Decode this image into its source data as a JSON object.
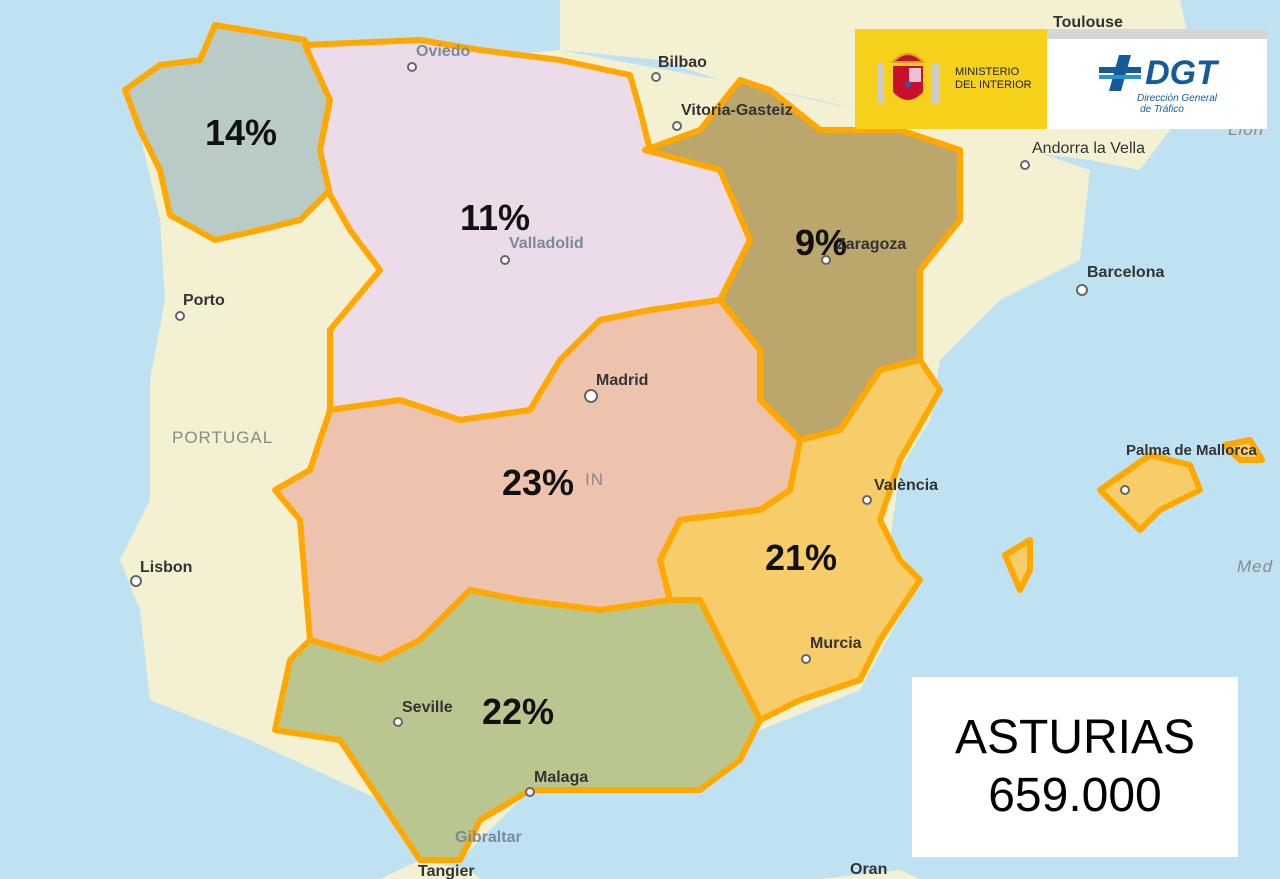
{
  "map": {
    "colors": {
      "sea": "#bfe2f3",
      "land": "#f4f0d2",
      "border": "#ffa800"
    },
    "regions": [
      {
        "id": "northwest",
        "percent": "14%",
        "color": "#b8cbc6"
      },
      {
        "id": "north",
        "percent": "11%",
        "color": "#ecdbe8"
      },
      {
        "id": "northeast",
        "percent": "9%",
        "color": "#bba66b"
      },
      {
        "id": "center",
        "percent": "23%",
        "color": "#eec3ad"
      },
      {
        "id": "east",
        "percent": "21%",
        "color": "#f7cd6a"
      },
      {
        "id": "south",
        "percent": "22%",
        "color": "#bac68f"
      }
    ],
    "cities": {
      "toulouse": "Toulouse",
      "oviedo": "Oviedo",
      "bilbao": "Bilbao",
      "vitoria": "Vitoria-Gasteiz",
      "andorra": "Andorra la Vella",
      "barcelona": "Barcelona",
      "zaragoza": "Zaragoza",
      "valladolid": "Valladolid",
      "porto": "Porto",
      "madrid": "Madrid",
      "valencia": "València",
      "palma": "Palma de Mallorca",
      "lisbon": "Lisbon",
      "murcia": "Murcia",
      "seville": "Seville",
      "malaga": "Malaga",
      "gibraltar": "Gibraltar",
      "tangier": "Tangier",
      "oran": "Oran"
    },
    "country_labels": {
      "portugal": "PORTUGAL",
      "spain_fragment": "IN",
      "lion": "Lion",
      "med": "Med"
    }
  },
  "logo": {
    "ministry": [
      "MINISTERIO",
      "DEL INTERIOR"
    ],
    "dgt": "DGT",
    "dgt_sub": [
      "Dirección General",
      "de Tráfico"
    ]
  },
  "infobox": {
    "region": "ASTURIAS",
    "value": "659.000"
  }
}
